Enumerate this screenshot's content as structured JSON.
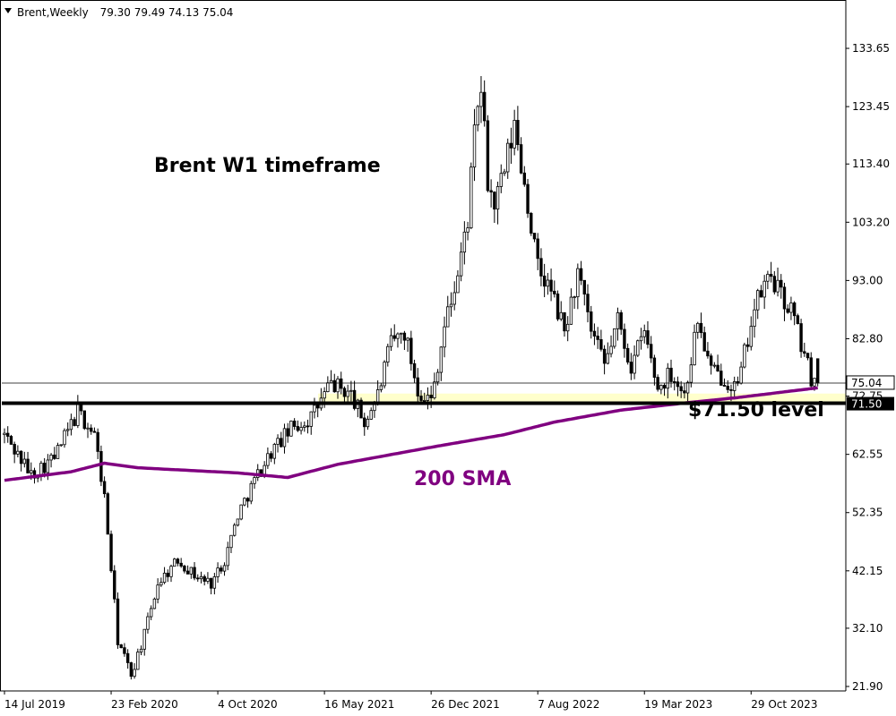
{
  "chart_data": {
    "type": "candlestick",
    "symbol": "Brent,Weekly",
    "ohlc_readout": "79.30 79.49 74.13 75.04",
    "y_ticks": [
      "133.65",
      "123.45",
      "113.40",
      "103.20",
      "93.00",
      "82.80",
      "72.75",
      "62.55",
      "52.35",
      "42.15",
      "32.10",
      "21.90"
    ],
    "x_ticks": [
      "14 Jul 2019",
      "23 Feb 2020",
      "4 Oct 2020",
      "16 May 2021",
      "26 Dec 2021",
      "7 Aug 2022",
      "19 Mar 2023",
      "29 Oct 2023"
    ],
    "ylim": [
      18.0,
      136.5
    ],
    "current_price": 75.04,
    "current_price_label": "75.04",
    "level_price": 71.5,
    "level_label": "71.50",
    "support_zone": [
      71.5,
      73.2
    ],
    "annotations": {
      "title": "Brent W1 timeframe",
      "level": "$71.50 level",
      "sma": "200 SMA"
    },
    "price_anchors": [
      [
        0,
        66
      ],
      [
        8,
        59
      ],
      [
        15,
        62
      ],
      [
        22,
        70
      ],
      [
        27,
        66
      ],
      [
        30,
        55
      ],
      [
        34,
        30
      ],
      [
        38,
        24
      ],
      [
        42,
        31
      ],
      [
        46,
        40
      ],
      [
        52,
        44
      ],
      [
        58,
        41
      ],
      [
        62,
        40
      ],
      [
        66,
        44
      ],
      [
        70,
        52
      ],
      [
        75,
        58
      ],
      [
        80,
        63
      ],
      [
        86,
        67
      ],
      [
        92,
        69
      ],
      [
        98,
        75
      ],
      [
        104,
        73
      ],
      [
        108,
        68
      ],
      [
        112,
        73
      ],
      [
        116,
        82
      ],
      [
        120,
        84
      ],
      [
        124,
        74
      ],
      [
        128,
        72
      ],
      [
        132,
        85
      ],
      [
        136,
        94
      ],
      [
        139,
        104
      ],
      [
        141,
        118
      ],
      [
        143,
        127
      ],
      [
        145,
        110
      ],
      [
        147,
        106
      ],
      [
        150,
        112
      ],
      [
        153,
        120
      ],
      [
        156,
        110
      ],
      [
        160,
        95
      ],
      [
        164,
        91
      ],
      [
        168,
        84
      ],
      [
        172,
        94
      ],
      [
        176,
        84
      ],
      [
        180,
        78
      ],
      [
        184,
        86
      ],
      [
        188,
        78
      ],
      [
        192,
        84
      ],
      [
        196,
        74
      ],
      [
        200,
        77
      ],
      [
        204,
        73
      ],
      [
        208,
        86
      ],
      [
        212,
        77
      ],
      [
        216,
        76
      ],
      [
        220,
        74
      ],
      [
        224,
        86
      ],
      [
        227,
        91
      ],
      [
        230,
        94
      ],
      [
        233,
        90
      ],
      [
        236,
        88
      ],
      [
        239,
        82
      ],
      [
        242,
        76
      ],
      [
        244,
        75
      ]
    ],
    "sma_anchors": [
      [
        0,
        58.0
      ],
      [
        20,
        59.5
      ],
      [
        30,
        61.0
      ],
      [
        40,
        60.2
      ],
      [
        70,
        59.3
      ],
      [
        85,
        58.5
      ],
      [
        100,
        60.8
      ],
      [
        130,
        64.0
      ],
      [
        150,
        66.0
      ],
      [
        165,
        68.2
      ],
      [
        185,
        70.3
      ],
      [
        205,
        71.6
      ],
      [
        220,
        72.5
      ],
      [
        244,
        74.2
      ]
    ],
    "colors": {
      "candle_up": "#ffffff",
      "candle_down": "#000000",
      "sma": "#800080",
      "zone": "#ffffcc",
      "level_line": "#000000",
      "grid": "#000000"
    }
  }
}
